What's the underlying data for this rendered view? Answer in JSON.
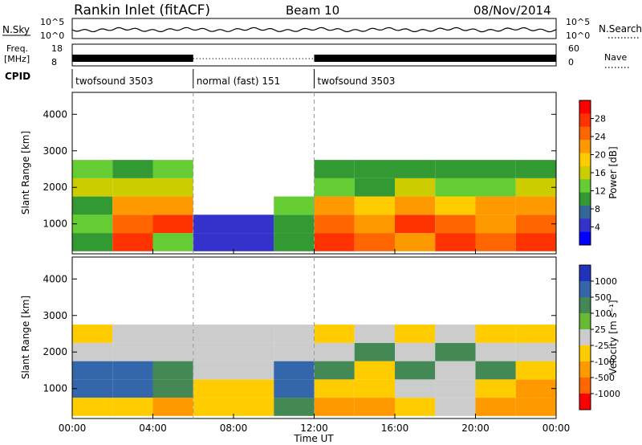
{
  "header": {
    "title": "Rankin Inlet (fitACF)",
    "beam": "Beam 10",
    "date": "08/Nov/2014"
  },
  "strips": {
    "nsky_label": "N.Sky",
    "nsky_ticks": [
      "10^5",
      "10^0"
    ],
    "nsearch_ticks": [
      "10^5",
      "10^0"
    ],
    "nsearch_label": "N.Search",
    "freq_label": "Freq.",
    "freq_unit": "[MHz]",
    "freq_ticks": [
      "18",
      "8"
    ],
    "nave_ticks": [
      "60",
      "0"
    ],
    "nave_label": "Nave",
    "cpid_label": "CPID"
  },
  "cpid_segments": [
    {
      "name": "twofsound 3503",
      "start_hour": 0,
      "end_hour": 6
    },
    {
      "name": "normal (fast) 151",
      "start_hour": 6,
      "end_hour": 12
    },
    {
      "name": "twofsound 3503",
      "start_hour": 12,
      "end_hour": 24
    }
  ],
  "x_axis": {
    "label": "Time UT",
    "ticks": [
      "00:00",
      "04:00",
      "08:00",
      "12:00",
      "16:00",
      "20:00",
      "00:00"
    ]
  },
  "panels": {
    "power": {
      "ylabel": "Slant Range [km]",
      "yticks": [
        "4000",
        "3000",
        "2000",
        "1000"
      ],
      "cbar_title": "Power [dB]",
      "cbar_ticks": [
        "28",
        "24",
        "20",
        "16",
        "12",
        "8",
        "4"
      ],
      "colors": [
        "#ff0000",
        "#ff3300",
        "#ff6600",
        "#ff9900",
        "#ffcc00",
        "#cccc00",
        "#66cc33",
        "#339933",
        "#336699",
        "#3333cc",
        "#0000ff"
      ]
    },
    "velocity": {
      "ylabel": "Slant Range [km]",
      "yticks": [
        "4000",
        "3000",
        "2000",
        "1000"
      ],
      "cbar_title": "Velocity [m s⁻¹]",
      "cbar_ticks": [
        "1000",
        "500",
        "100",
        "25",
        "-25",
        "-100",
        "-500",
        "-1000"
      ],
      "colors": [
        "#2233bb",
        "#3366aa",
        "#448855",
        "#66bb33",
        "#cccccc",
        "#ffcc00",
        "#ff9900",
        "#ff6600",
        "#ff0000"
      ]
    }
  },
  "chart_data": [
    {
      "type": "heatmap",
      "title": "Power",
      "xlabel": "Time UT",
      "ylabel": "Slant Range [km]",
      "xlim": [
        0,
        24
      ],
      "ylim": [
        180,
        4600
      ],
      "colorbar": {
        "title": "Power [dB]",
        "range": [
          0,
          32
        ],
        "ticks": [
          4,
          8,
          12,
          16,
          20,
          24,
          28
        ]
      },
      "x_hours": [
        0,
        2,
        4,
        6,
        8,
        10,
        12,
        14,
        16,
        18,
        20,
        22
      ],
      "range_km": [
        500,
        1000,
        1500,
        2000,
        2500
      ],
      "values_db": [
        [
          12,
          28,
          14,
          6,
          4,
          10,
          28,
          26,
          24,
          28,
          26,
          28
        ],
        [
          14,
          26,
          28,
          6,
          4,
          12,
          26,
          24,
          28,
          26,
          24,
          26
        ],
        [
          12,
          22,
          24,
          0,
          0,
          14,
          24,
          20,
          22,
          20,
          22,
          24
        ],
        [
          16,
          18,
          16,
          0,
          0,
          0,
          14,
          12,
          16,
          14,
          14,
          16
        ],
        [
          14,
          12,
          14,
          0,
          0,
          0,
          10,
          12,
          10,
          12,
          12,
          12
        ]
      ]
    },
    {
      "type": "heatmap",
      "title": "Velocity",
      "xlabel": "Time UT",
      "ylabel": "Slant Range [km]",
      "xlim": [
        0,
        24
      ],
      "ylim": [
        180,
        4600
      ],
      "colorbar": {
        "title": "Velocity [m s-1]",
        "ticks": [
          1000,
          500,
          100,
          25,
          -25,
          -100,
          -500,
          -1000
        ]
      },
      "x_hours": [
        0,
        2,
        4,
        6,
        8,
        10,
        12,
        14,
        16,
        18,
        20,
        22
      ],
      "range_km": [
        500,
        1000,
        1500,
        2000,
        2500
      ],
      "values_mps": [
        [
          -100,
          -100,
          -500,
          -100,
          -100,
          100,
          -500,
          -500,
          -100,
          0,
          -500,
          -500
        ],
        [
          500,
          500,
          100,
          -100,
          -100,
          500,
          -100,
          -100,
          0,
          0,
          -100,
          -500
        ],
        [
          500,
          500,
          100,
          0,
          0,
          500,
          100,
          -100,
          100,
          0,
          100,
          -100
        ],
        [
          0,
          0,
          0,
          0,
          0,
          0,
          0,
          100,
          0,
          100,
          0,
          0
        ],
        [
          -100,
          0,
          0,
          0,
          0,
          0,
          -100,
          0,
          -100,
          0,
          -100,
          -100
        ]
      ]
    }
  ]
}
